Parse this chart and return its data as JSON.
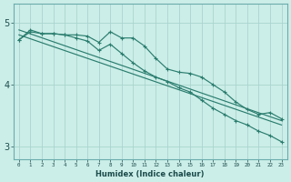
{
  "xlabel": "Humidex (Indice chaleur)",
  "background_color": "#cceee8",
  "grid_color": "#aad4ce",
  "line_color": "#2a7d6e",
  "xlim": [
    -0.5,
    23.5
  ],
  "ylim": [
    2.8,
    5.3
  ],
  "yticks": [
    3,
    4,
    5
  ],
  "xticks": [
    0,
    1,
    2,
    3,
    4,
    5,
    6,
    7,
    8,
    9,
    10,
    11,
    12,
    13,
    14,
    15,
    16,
    17,
    18,
    19,
    20,
    21,
    22,
    23
  ],
  "curve1": [
    4.72,
    4.88,
    4.82,
    4.82,
    4.8,
    4.8,
    4.78,
    4.68,
    4.85,
    4.75,
    4.75,
    4.62,
    4.42,
    4.25,
    4.2,
    4.18,
    4.12,
    4.0,
    3.88,
    3.72,
    3.6,
    3.52,
    3.55,
    3.45
  ],
  "curve2": [
    4.72,
    4.85,
    4.82,
    4.82,
    4.8,
    4.75,
    4.7,
    4.55,
    4.65,
    4.5,
    4.35,
    4.22,
    4.12,
    4.05,
    3.95,
    3.88,
    3.75,
    3.62,
    3.52,
    3.42,
    3.35,
    3.25,
    3.18,
    3.08
  ],
  "trend1_start": 4.88,
  "trend1_end": 3.42,
  "trend2_start": 4.8,
  "trend2_end": 3.35
}
